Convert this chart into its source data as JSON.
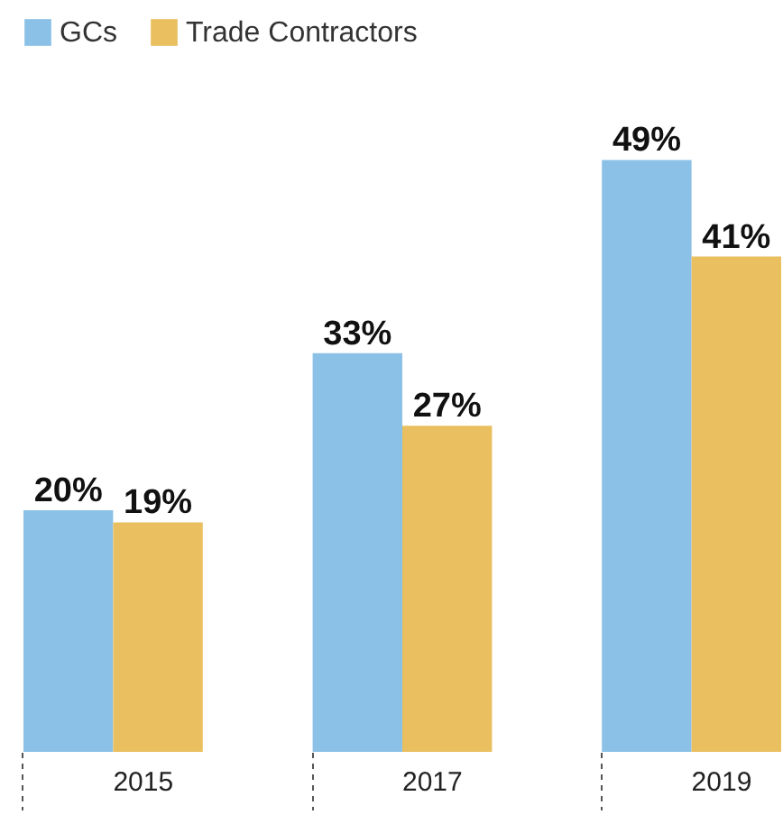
{
  "chart_data": {
    "type": "bar",
    "categories": [
      "2015",
      "2017",
      "2019"
    ],
    "series": [
      {
        "name": "GCs",
        "color": "#8bc1e7",
        "values": [
          20,
          33,
          49
        ],
        "value_labels": [
          "20%",
          "33%",
          "49%"
        ]
      },
      {
        "name": "Trade Contractors",
        "color": "#e9bf60",
        "values": [
          19,
          27,
          41
        ],
        "value_labels": [
          "19%",
          "27%",
          "41%"
        ]
      }
    ],
    "legend": "top left",
    "grid": false
  }
}
